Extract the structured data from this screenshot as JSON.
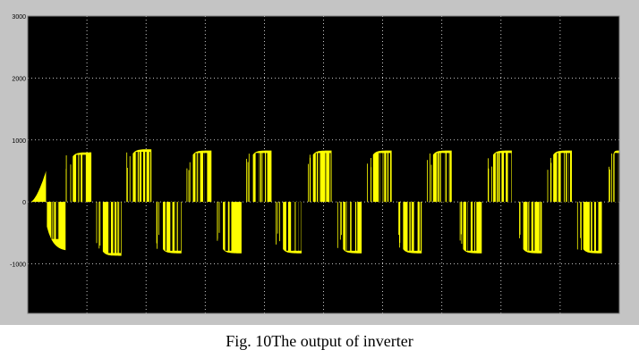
{
  "caption": "Fig. 10The output of inverter",
  "colors": {
    "frame": "#c4c4c4",
    "plot_bg": "#000000",
    "grid": "#ffffff",
    "trace": "#ffff00",
    "tick_label": "#000000"
  },
  "chart_data": {
    "type": "line",
    "title": "",
    "xlabel": "",
    "ylabel": "",
    "ylim": [
      -1800,
      3000
    ],
    "yticks": [
      3000,
      2000,
      1000,
      0,
      -1000
    ],
    "ytick_labels": [
      "3000",
      "2000",
      "1000",
      "0",
      "-1000"
    ],
    "x_gridlines": 9,
    "grid": true,
    "series": [
      {
        "waveform": "PWM square wave",
        "startup_peak": 500,
        "first_negative_peak": -800,
        "positive_envelope": [
          800,
          850,
          830,
          830,
          830,
          830,
          830,
          830,
          830,
          830
        ],
        "negative_envelope": [
          -800,
          -870,
          -830,
          -830,
          -830,
          -830,
          -830,
          -830,
          -830,
          -830
        ],
        "amplitude": 830
      }
    ]
  }
}
